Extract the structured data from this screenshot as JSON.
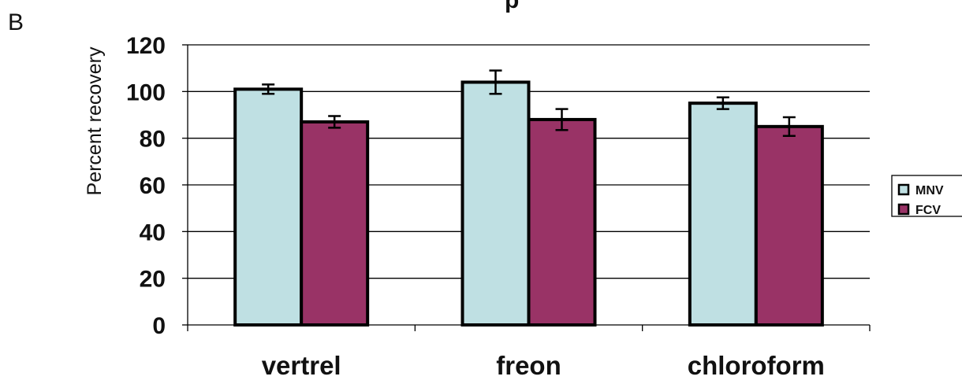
{
  "panel_label": "B",
  "title_fragment": "p",
  "chart_data": {
    "type": "bar",
    "categories": [
      "vertrel",
      "freon",
      "chloroform"
    ],
    "series": [
      {
        "name": "MNV",
        "values": [
          101,
          104,
          95
        ],
        "errors": [
          2,
          5,
          2.5
        ],
        "color": "#bfe0e3"
      },
      {
        "name": "FCV",
        "values": [
          87,
          88,
          85
        ],
        "errors": [
          2.5,
          4.5,
          4
        ],
        "color": "#993366"
      }
    ],
    "ylabel": "Percent recovery",
    "xlabel": "",
    "ylim": [
      0,
      120
    ],
    "yticks": [
      0,
      20,
      40,
      60,
      80,
      100,
      120
    ],
    "grid": true,
    "legend_position": "right"
  }
}
